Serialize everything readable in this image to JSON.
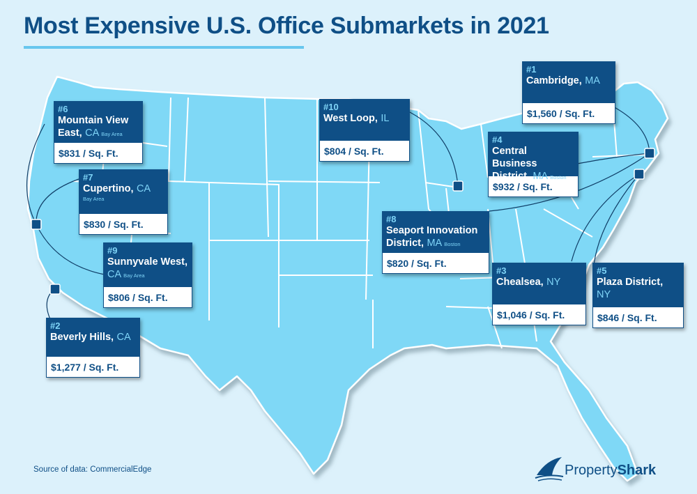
{
  "title": "Most Expensive U.S. Office Submarkets in 2021",
  "source": "Source of data: CommercialEdge",
  "logo": {
    "property": "Property",
    "shark": "Shark",
    "icon": "shark-fin-icon"
  },
  "colors": {
    "background": "#dcf1fb",
    "map_fill": "#7fd8f6",
    "card_header": "#0f4f86",
    "accent": "#7fd4f7"
  },
  "markets": [
    {
      "rank": "#1",
      "name": "Cambridge,",
      "state": "MA",
      "sub": "",
      "price": "$1,560 / Sq. Ft."
    },
    {
      "rank": "#2",
      "name": "Beverly Hills,",
      "state": "CA",
      "sub": "",
      "price": "$1,277 / Sq. Ft."
    },
    {
      "rank": "#3",
      "name": "Chealsea,",
      "state": "NY",
      "sub": "",
      "price": "$1,046 / Sq. Ft."
    },
    {
      "rank": "#4",
      "name": "Central Business District,",
      "state": "MA",
      "sub": "Boston",
      "price": "$932 / Sq. Ft."
    },
    {
      "rank": "#5",
      "name": "Plaza District,",
      "state": "NY",
      "sub": "",
      "price": "$846 / Sq. Ft."
    },
    {
      "rank": "#6",
      "name": "Mountain View East,",
      "state": "CA",
      "sub": "Bay Area",
      "price": "$831 / Sq. Ft."
    },
    {
      "rank": "#7",
      "name": "Cupertino,",
      "state": "CA",
      "sub": "Bay Area",
      "price": "$830 / Sq. Ft."
    },
    {
      "rank": "#8",
      "name": "Seaport Innovation District,",
      "state": "MA",
      "sub": "Boston",
      "price": "$820 / Sq. Ft."
    },
    {
      "rank": "#9",
      "name": "Sunnyvale West,",
      "state": "CA",
      "sub": "Bay Area",
      "price": "$806 / Sq. Ft."
    },
    {
      "rank": "#10",
      "name": "West Loop,",
      "state": "IL",
      "sub": "",
      "price": "$804 / Sq. Ft."
    }
  ]
}
